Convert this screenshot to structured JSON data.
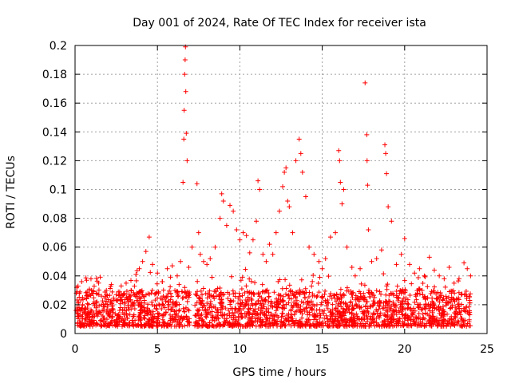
{
  "chart_data": {
    "type": "scatter",
    "title": "Day 001 of 2024, Rate Of TEC Index for receiver ista",
    "xlabel": "GPS time / hours",
    "ylabel": "ROTI / TECUs",
    "xlim": [
      0,
      25
    ],
    "ylim": [
      0,
      0.2
    ],
    "xticks": [
      0,
      5,
      10,
      15,
      20,
      25
    ],
    "xtick_labels": [
      "0",
      "5",
      "10",
      "15",
      "20",
      "25"
    ],
    "yticks": [
      0,
      0.02,
      0.04,
      0.06,
      0.08,
      0.1,
      0.12,
      0.14,
      0.16,
      0.18,
      0.2
    ],
    "ytick_labels": [
      "0",
      "0.02",
      "0.04",
      "0.06",
      "0.08",
      "0.1",
      "0.12",
      "0.14",
      "0.16",
      "0.18",
      "0.2"
    ],
    "grid": true,
    "marker": "+",
    "color": "#ff0000",
    "series": [
      {
        "name": "ROTI",
        "x": [
          0.1,
          0.4,
          0.7,
          1.0,
          1.3,
          1.6,
          1.9,
          2.2,
          2.5,
          2.8,
          3.1,
          3.4,
          3.7,
          3.9,
          4.1,
          4.3,
          4.5,
          4.7,
          5.0,
          5.3,
          5.6,
          5.9,
          6.2,
          6.4,
          6.55,
          6.6,
          6.62,
          6.65,
          6.68,
          6.7,
          6.72,
          6.75,
          6.8,
          6.9,
          7.1,
          7.4,
          7.5,
          7.6,
          7.8,
          8.0,
          8.2,
          8.5,
          8.8,
          8.9,
          9.0,
          9.2,
          9.4,
          9.6,
          9.8,
          10.0,
          10.2,
          10.4,
          10.6,
          10.8,
          11.0,
          11.1,
          11.2,
          11.4,
          11.6,
          11.8,
          12.0,
          12.2,
          12.4,
          12.6,
          12.7,
          12.8,
          12.9,
          13.0,
          13.2,
          13.4,
          13.6,
          13.7,
          13.8,
          14.0,
          14.2,
          14.5,
          14.8,
          15.0,
          15.2,
          15.5,
          15.8,
          16.0,
          16.05,
          16.1,
          16.2,
          16.3,
          16.5,
          16.8,
          17.0,
          17.3,
          17.6,
          17.7,
          17.72,
          17.75,
          17.8,
          18.0,
          18.3,
          18.6,
          18.8,
          18.85,
          18.9,
          19.0,
          19.2,
          19.5,
          19.8,
          20.0,
          20.3,
          20.6,
          20.9,
          21.2,
          21.5,
          21.8,
          22.1,
          22.4,
          22.7,
          23.0,
          23.3,
          23.6,
          23.8,
          24.0
        ],
        "y": [
          0.032,
          0.036,
          0.037,
          0.03,
          0.028,
          0.026,
          0.03,
          0.034,
          0.027,
          0.033,
          0.035,
          0.03,
          0.041,
          0.045,
          0.05,
          0.057,
          0.067,
          0.048,
          0.042,
          0.036,
          0.045,
          0.047,
          0.04,
          0.05,
          0.105,
          0.135,
          0.155,
          0.18,
          0.19,
          0.199,
          0.168,
          0.139,
          0.12,
          0.046,
          0.06,
          0.104,
          0.07,
          0.055,
          0.05,
          0.048,
          0.052,
          0.06,
          0.08,
          0.097,
          0.092,
          0.075,
          0.089,
          0.085,
          0.072,
          0.065,
          0.07,
          0.068,
          0.056,
          0.065,
          0.078,
          0.106,
          0.1,
          0.055,
          0.05,
          0.062,
          0.055,
          0.07,
          0.085,
          0.102,
          0.112,
          0.115,
          0.092,
          0.088,
          0.07,
          0.12,
          0.135,
          0.125,
          0.112,
          0.095,
          0.06,
          0.055,
          0.05,
          0.045,
          0.052,
          0.067,
          0.07,
          0.127,
          0.12,
          0.105,
          0.09,
          0.1,
          0.06,
          0.046,
          0.04,
          0.045,
          0.174,
          0.138,
          0.12,
          0.103,
          0.072,
          0.05,
          0.052,
          0.058,
          0.131,
          0.125,
          0.111,
          0.088,
          0.078,
          0.048,
          0.055,
          0.066,
          0.048,
          0.042,
          0.045,
          0.04,
          0.053,
          0.044,
          0.04,
          0.038,
          0.046,
          0.035,
          0.038,
          0.049,
          0.045,
          0.04
        ],
        "noise_floor": [
          0.005,
          0.03
        ]
      }
    ]
  }
}
